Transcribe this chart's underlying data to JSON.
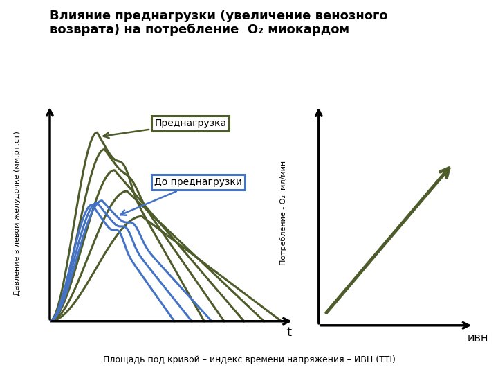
{
  "title": "Влияние преднагрузки (увеличение венозного\nвозврата) на потребление  О₂ миокардом",
  "title_fontsize": 13,
  "ylabel_left": "Давление в левом желудочке (мм.рт.ст)",
  "xlabel_left": "t",
  "ylabel_right": "Потребление - О₂  мл/мин",
  "xlabel_right": "ИВН",
  "caption": "Площадь под кривой – индекс времени напряжения – ИВН (TTI)",
  "blue_color": "#4472C4",
  "green_color": "#4E5B2A",
  "annotation_preload_text": "Преднагрузка",
  "annotation_before_text": "До преднагрузки"
}
